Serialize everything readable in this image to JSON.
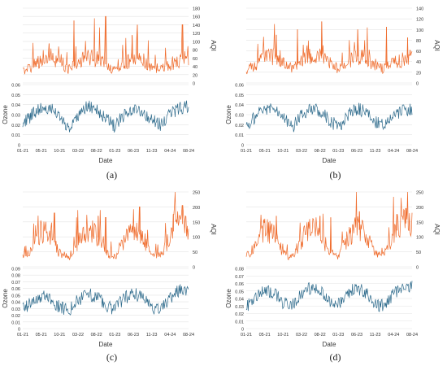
{
  "figure": {
    "colors": {
      "aqi": "#ef6a2a",
      "ozone": "#2e6b8c",
      "grid": "#e3e3e3",
      "axis": "#9a9a9a",
      "text": "#333333"
    }
  },
  "chart_data": [
    {
      "type": "line",
      "caption": "(a)",
      "xlabel": "Date",
      "ylabel_top": "AQI",
      "ylabel_bottom": "Ozone",
      "x_ticks": [
        "01-21",
        "05-21",
        "10-21",
        "03-22",
        "08-22",
        "01-23",
        "06-23",
        "11-23",
        "04-24",
        "08-24"
      ],
      "aqi_ylim": [
        0,
        180
      ],
      "aqi_ticks": [
        0,
        20,
        40,
        60,
        80,
        100,
        120,
        140,
        160,
        180
      ],
      "ozone_ylim": [
        0,
        0.06
      ],
      "ozone_ticks": [
        0,
        0.01,
        0.02,
        0.03,
        0.04,
        0.05,
        0.06
      ],
      "series": [
        {
          "name": "AQI",
          "x": [
            "01-21",
            "03-21",
            "05-21",
            "08-21",
            "10-21",
            "01-22",
            "03-22",
            "06-22",
            "08-22",
            "10-22",
            "01-23",
            "03-23",
            "06-23",
            "08-23",
            "11-23",
            "01-24",
            "04-24",
            "06-24",
            "08-24"
          ],
          "values": [
            28,
            40,
            58,
            62,
            55,
            32,
            48,
            62,
            58,
            45,
            30,
            45,
            60,
            55,
            40,
            32,
            45,
            55,
            62
          ],
          "peaks": [
            [
              35,
              95
            ],
            [
              68,
              150
            ],
            [
              110,
              160
            ],
            [
              145,
              115
            ],
            [
              152,
              140
            ],
            [
              212,
              140
            ]
          ]
        },
        {
          "name": "Ozone",
          "x": [
            "01-21",
            "03-21",
            "05-21",
            "08-21",
            "10-21",
            "01-22",
            "03-22",
            "06-22",
            "08-22",
            "10-22",
            "01-23",
            "03-23",
            "06-23",
            "08-23",
            "11-23",
            "01-24",
            "04-24",
            "06-24",
            "08-24"
          ],
          "values": [
            0.02,
            0.03,
            0.038,
            0.036,
            0.028,
            0.018,
            0.03,
            0.038,
            0.036,
            0.026,
            0.018,
            0.03,
            0.037,
            0.034,
            0.024,
            0.02,
            0.03,
            0.036,
            0.038
          ]
        }
      ]
    },
    {
      "type": "line",
      "caption": "(b)",
      "xlabel": "Date",
      "ylabel_top": "AQI",
      "ylabel_bottom": "Ozone",
      "x_ticks": [
        "01-21",
        "05-21",
        "10-21",
        "03-22",
        "08-22",
        "01-23",
        "06-23",
        "11-23",
        "04-24",
        "08-24"
      ],
      "aqi_ylim": [
        0,
        140
      ],
      "aqi_ticks": [
        0,
        20,
        40,
        60,
        80,
        100,
        120,
        140
      ],
      "ozone_ylim": [
        0,
        0.06
      ],
      "ozone_ticks": [
        0,
        0.01,
        0.02,
        0.03,
        0.04,
        0.05,
        0.06
      ],
      "series": [
        {
          "name": "AQI",
          "x": [
            "01-21",
            "03-21",
            "05-21",
            "08-21",
            "10-21",
            "01-22",
            "03-22",
            "06-22",
            "08-22",
            "10-22",
            "01-23",
            "03-23",
            "06-23",
            "08-23",
            "11-23",
            "01-24",
            "04-24",
            "06-24",
            "08-24"
          ],
          "values": [
            22,
            35,
            45,
            50,
            44,
            26,
            40,
            50,
            48,
            38,
            26,
            38,
            50,
            46,
            34,
            26,
            36,
            45,
            50
          ],
          "peaks": [
            [
              40,
              90
            ],
            [
              68,
              100
            ],
            [
              100,
              115
            ],
            [
              148,
              100
            ],
            [
              186,
              105
            ],
            [
              214,
              85
            ]
          ]
        },
        {
          "name": "Ozone",
          "x": [
            "01-21",
            "03-21",
            "05-21",
            "08-21",
            "10-21",
            "01-22",
            "03-22",
            "06-22",
            "08-22",
            "10-22",
            "01-23",
            "03-23",
            "06-23",
            "08-23",
            "11-23",
            "01-24",
            "04-24",
            "06-24",
            "08-24"
          ],
          "values": [
            0.018,
            0.028,
            0.036,
            0.035,
            0.027,
            0.017,
            0.03,
            0.037,
            0.034,
            0.025,
            0.017,
            0.03,
            0.036,
            0.033,
            0.022,
            0.019,
            0.029,
            0.034,
            0.036
          ]
        }
      ]
    },
    {
      "type": "line",
      "caption": "(c)",
      "xlabel": "Date",
      "ylabel_top": "AQI",
      "ylabel_bottom": "Ozone",
      "x_ticks": [
        "01-21",
        "05-21",
        "10-21",
        "03-22",
        "08-22",
        "01-23",
        "06-23",
        "11-23",
        "04-24",
        "08-24"
      ],
      "aqi_ylim": [
        0,
        250
      ],
      "aqi_ticks": [
        0,
        50,
        100,
        150,
        200,
        250
      ],
      "ozone_ylim": [
        0,
        0.09
      ],
      "ozone_ticks": [
        0,
        0.01,
        0.02,
        0.03,
        0.04,
        0.05,
        0.06,
        0.07,
        0.08,
        0.09
      ],
      "series": [
        {
          "name": "AQI",
          "x": [
            "01-21",
            "03-21",
            "05-21",
            "08-21",
            "10-21",
            "01-22",
            "03-22",
            "06-22",
            "08-22",
            "10-22",
            "01-23",
            "03-23",
            "06-23",
            "08-23",
            "11-23",
            "01-24",
            "04-24",
            "06-24",
            "08-24"
          ],
          "values": [
            30,
            60,
            120,
            110,
            45,
            30,
            85,
            125,
            110,
            45,
            32,
            90,
            125,
            100,
            40,
            40,
            100,
            150,
            130
          ],
          "peaks": [
            [
              42,
              180
            ],
            [
              100,
              170
            ],
            [
              110,
              165
            ],
            [
              155,
              200
            ],
            [
              200,
              175
            ],
            [
              212,
              205
            ]
          ]
        },
        {
          "name": "Ozone",
          "x": [
            "01-21",
            "03-21",
            "05-21",
            "08-21",
            "10-21",
            "01-22",
            "03-22",
            "06-22",
            "08-22",
            "10-22",
            "01-23",
            "03-23",
            "06-23",
            "08-23",
            "11-23",
            "01-24",
            "04-24",
            "06-24",
            "08-24"
          ],
          "values": [
            0.028,
            0.04,
            0.05,
            0.045,
            0.032,
            0.028,
            0.042,
            0.052,
            0.048,
            0.034,
            0.03,
            0.045,
            0.053,
            0.046,
            0.03,
            0.028,
            0.045,
            0.058,
            0.055
          ]
        }
      ]
    },
    {
      "type": "line",
      "caption": "(d)",
      "xlabel": "Date",
      "ylabel_top": "AQI",
      "ylabel_bottom": "Ozone",
      "x_ticks": [
        "01-21",
        "05-21",
        "10-21",
        "03-22",
        "08-22",
        "01-23",
        "06-23",
        "11-23",
        "04-24",
        "08-24"
      ],
      "aqi_ylim": [
        0,
        250
      ],
      "aqi_ticks": [
        0,
        50,
        100,
        150,
        200,
        250
      ],
      "ozone_ylim": [
        0,
        0.08
      ],
      "ozone_ticks": [
        0,
        0.01,
        0.02,
        0.03,
        0.04,
        0.05,
        0.06,
        0.07,
        0.08
      ],
      "series": [
        {
          "name": "AQI",
          "x": [
            "01-21",
            "03-21",
            "05-21",
            "08-21",
            "10-21",
            "01-22",
            "03-22",
            "06-22",
            "08-22",
            "10-22",
            "01-23",
            "03-23",
            "06-23",
            "08-23",
            "11-23",
            "01-24",
            "04-24",
            "06-24",
            "08-24"
          ],
          "values": [
            32,
            70,
            125,
            110,
            45,
            30,
            90,
            130,
            115,
            48,
            32,
            95,
            130,
            105,
            42,
            40,
            105,
            150,
            135
          ],
          "peaks": [
            [
              40,
              170
            ],
            [
              98,
              170
            ],
            [
              112,
              165
            ],
            [
              150,
              185
            ],
            [
              200,
              175
            ],
            [
              212,
              195
            ]
          ]
        },
        {
          "name": "Ozone",
          "x": [
            "01-21",
            "03-21",
            "05-21",
            "08-21",
            "10-21",
            "01-22",
            "03-22",
            "06-22",
            "08-22",
            "10-22",
            "01-23",
            "03-23",
            "06-23",
            "08-23",
            "11-23",
            "01-24",
            "04-24",
            "06-24",
            "08-24"
          ],
          "values": [
            0.03,
            0.042,
            0.052,
            0.048,
            0.034,
            0.03,
            0.045,
            0.054,
            0.05,
            0.036,
            0.032,
            0.047,
            0.054,
            0.048,
            0.032,
            0.03,
            0.046,
            0.058,
            0.056
          ]
        }
      ]
    }
  ]
}
